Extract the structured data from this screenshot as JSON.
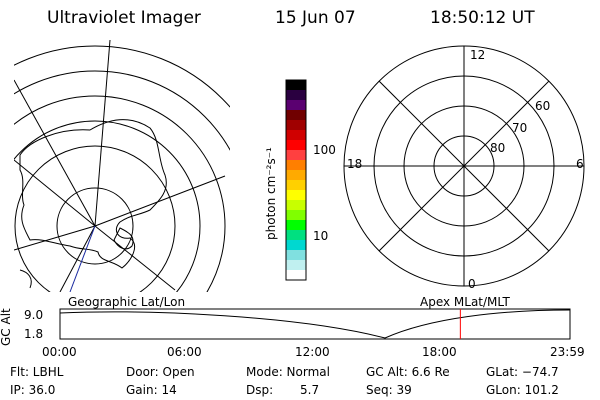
{
  "header": {
    "instrument": "Ultraviolet Imager",
    "date": "15 Jun 07",
    "time": "18:50:12 UT"
  },
  "colorbar": {
    "unit_label": "photon cm⁻²s⁻¹",
    "tick_100": "100",
    "tick_10": "10",
    "colors": [
      "#000000",
      "#2a0040",
      "#5a0070",
      "#700000",
      "#a00000",
      "#d00000",
      "#ff0000",
      "#ff4040",
      "#ff7f00",
      "#ffaa00",
      "#ffd000",
      "#ffff00",
      "#c8ff00",
      "#80ff00",
      "#00ff00",
      "#00e080",
      "#00d8d0",
      "#80e0e0",
      "#c0f0f0",
      "#ffffff"
    ]
  },
  "polar_plot": {
    "label_top": "12",
    "label_bottom": "0",
    "label_left": "18",
    "label_right": "6",
    "lat_60": "60",
    "lat_70": "70",
    "lat_80": "80"
  },
  "timeline": {
    "left_label": "Geographic Lat/Lon",
    "right_label": "Apex MLat/MLT",
    "axis_title": "GC Alt",
    "y_top": "9.0",
    "y_bottom": "1.8",
    "x_ticks": [
      "00:00",
      "06:00",
      "12:00",
      "18:00",
      "23:59"
    ],
    "marker_time_hours": 18.84,
    "marker_color": "#ff0000"
  },
  "status": {
    "flt": "Flt: LBHL",
    "ip": "IP: 36.0",
    "door": "Door: Open",
    "gain": "Gain: 14",
    "mode": "Mode: Normal",
    "dsp_label": "Dsp:",
    "dsp_value": "5.7",
    "gc_alt": "GC Alt: 6.6 Re",
    "seq": "Seq: 39",
    "glat": "GLat: −74.7",
    "glon": "GLon: 101.2"
  }
}
